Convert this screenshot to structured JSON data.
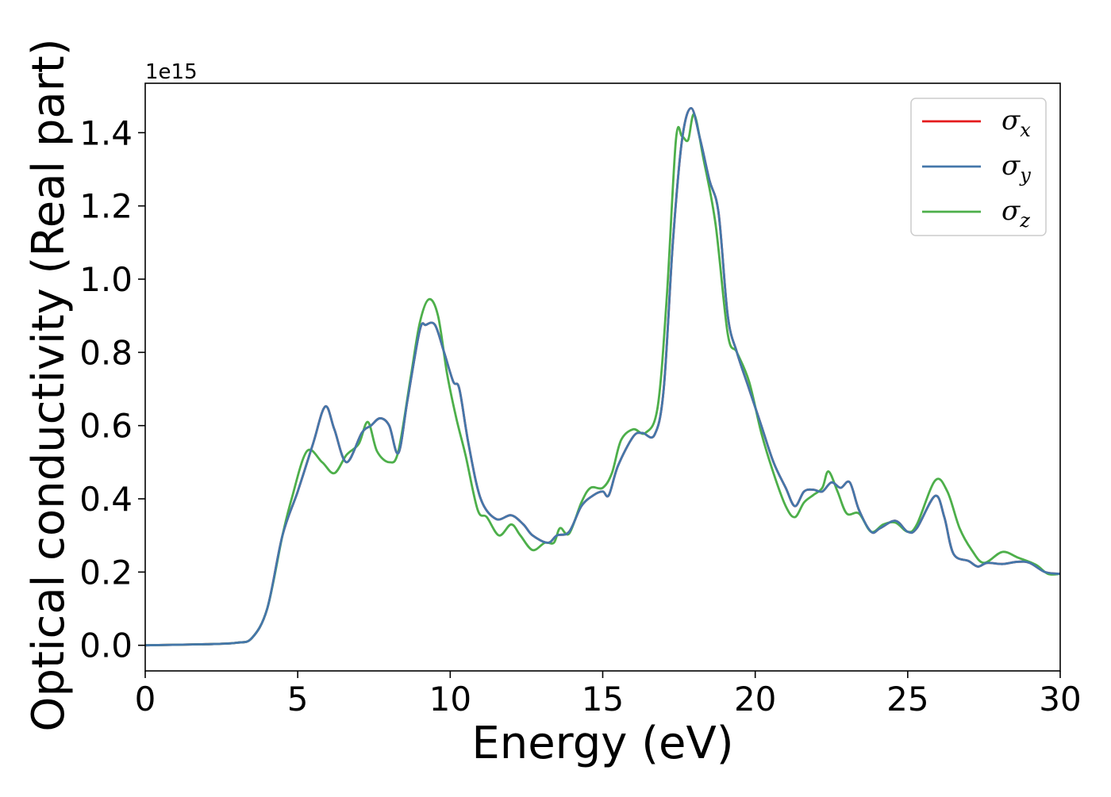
{
  "chart_data": {
    "type": "line",
    "xlabel": "Energy (eV)",
    "ylabel": "Optical conductivity (Real part)",
    "y_offset_text": "1e15",
    "xlim": [
      0,
      30
    ],
    "ylim": [
      -0.07,
      1.535
    ],
    "x_ticks": [
      0,
      5,
      10,
      15,
      20,
      25,
      30
    ],
    "x_tick_labels": [
      "0",
      "5",
      "10",
      "15",
      "20",
      "25",
      "30"
    ],
    "y_ticks": [
      0.0,
      0.2,
      0.4,
      0.6,
      0.8,
      1.0,
      1.2,
      1.4
    ],
    "y_tick_labels": [
      "0.0",
      "0.2",
      "0.4",
      "0.6",
      "0.8",
      "1.0",
      "1.2",
      "1.4"
    ],
    "grid": false,
    "legend_position": "top-right",
    "series": [
      {
        "name": "σ",
        "subscript": "x",
        "color": "#e41a1c",
        "points": [
          [
            0,
            0
          ],
          [
            2,
            0.003
          ],
          [
            3,
            0.007
          ],
          [
            3.5,
            0.02
          ],
          [
            4,
            0.1
          ],
          [
            4.5,
            0.3
          ],
          [
            5,
            0.42
          ],
          [
            5.5,
            0.55
          ],
          [
            5.9,
            0.652
          ],
          [
            6.2,
            0.59
          ],
          [
            6.6,
            0.5
          ],
          [
            7.1,
            0.58
          ],
          [
            7.4,
            0.6
          ],
          [
            7.7,
            0.62
          ],
          [
            8,
            0.6
          ],
          [
            8.3,
            0.525
          ],
          [
            8.6,
            0.67
          ],
          [
            9,
            0.86
          ],
          [
            9.2,
            0.875
          ],
          [
            9.5,
            0.875
          ],
          [
            9.8,
            0.8
          ],
          [
            10.1,
            0.72
          ],
          [
            10.3,
            0.7
          ],
          [
            10.6,
            0.55
          ],
          [
            11,
            0.4
          ],
          [
            11.5,
            0.345
          ],
          [
            12,
            0.355
          ],
          [
            12.4,
            0.33
          ],
          [
            12.7,
            0.3
          ],
          [
            13.2,
            0.28
          ],
          [
            13.5,
            0.3
          ],
          [
            13.9,
            0.31
          ],
          [
            14.3,
            0.38
          ],
          [
            14.7,
            0.41
          ],
          [
            15,
            0.42
          ],
          [
            15.2,
            0.41
          ],
          [
            15.5,
            0.49
          ],
          [
            16,
            0.57
          ],
          [
            16.3,
            0.58
          ],
          [
            16.7,
            0.575
          ],
          [
            17,
            0.7
          ],
          [
            17.3,
            1.1
          ],
          [
            17.6,
            1.38
          ],
          [
            17.9,
            1.467
          ],
          [
            18.2,
            1.38
          ],
          [
            18.5,
            1.27
          ],
          [
            18.8,
            1.18
          ],
          [
            19.1,
            0.9
          ],
          [
            19.4,
            0.8
          ],
          [
            19.8,
            0.7
          ],
          [
            20.2,
            0.6
          ],
          [
            20.6,
            0.5
          ],
          [
            21,
            0.43
          ],
          [
            21.3,
            0.38
          ],
          [
            21.6,
            0.42
          ],
          [
            21.9,
            0.425
          ],
          [
            22.2,
            0.42
          ],
          [
            22.5,
            0.445
          ],
          [
            22.8,
            0.43
          ],
          [
            23.1,
            0.445
          ],
          [
            23.4,
            0.37
          ],
          [
            23.8,
            0.31
          ],
          [
            24.1,
            0.32
          ],
          [
            24.6,
            0.34
          ],
          [
            25,
            0.31
          ],
          [
            25.3,
            0.32
          ],
          [
            25.9,
            0.408
          ],
          [
            26.2,
            0.35
          ],
          [
            26.5,
            0.25
          ],
          [
            27,
            0.23
          ],
          [
            27.3,
            0.215
          ],
          [
            27.6,
            0.225
          ],
          [
            28.1,
            0.222
          ],
          [
            28.6,
            0.228
          ],
          [
            29,
            0.225
          ],
          [
            29.5,
            0.2
          ],
          [
            30,
            0.195
          ]
        ]
      },
      {
        "name": "σ",
        "subscript": "y",
        "color": "#4477aa",
        "points": [
          [
            0,
            0
          ],
          [
            2,
            0.003
          ],
          [
            3,
            0.007
          ],
          [
            3.5,
            0.02
          ],
          [
            4,
            0.1
          ],
          [
            4.5,
            0.3
          ],
          [
            5,
            0.42
          ],
          [
            5.5,
            0.55
          ],
          [
            5.9,
            0.652
          ],
          [
            6.2,
            0.59
          ],
          [
            6.6,
            0.5
          ],
          [
            7.1,
            0.58
          ],
          [
            7.4,
            0.6
          ],
          [
            7.7,
            0.62
          ],
          [
            8,
            0.6
          ],
          [
            8.3,
            0.525
          ],
          [
            8.6,
            0.67
          ],
          [
            9,
            0.86
          ],
          [
            9.2,
            0.875
          ],
          [
            9.5,
            0.875
          ],
          [
            9.8,
            0.8
          ],
          [
            10.1,
            0.72
          ],
          [
            10.3,
            0.7
          ],
          [
            10.6,
            0.55
          ],
          [
            11,
            0.4
          ],
          [
            11.5,
            0.345
          ],
          [
            12,
            0.355
          ],
          [
            12.4,
            0.33
          ],
          [
            12.7,
            0.3
          ],
          [
            13.2,
            0.28
          ],
          [
            13.5,
            0.3
          ],
          [
            13.9,
            0.31
          ],
          [
            14.3,
            0.38
          ],
          [
            14.7,
            0.41
          ],
          [
            15,
            0.42
          ],
          [
            15.2,
            0.41
          ],
          [
            15.5,
            0.49
          ],
          [
            16,
            0.57
          ],
          [
            16.3,
            0.58
          ],
          [
            16.7,
            0.575
          ],
          [
            17,
            0.7
          ],
          [
            17.3,
            1.1
          ],
          [
            17.6,
            1.38
          ],
          [
            17.9,
            1.467
          ],
          [
            18.2,
            1.38
          ],
          [
            18.5,
            1.27
          ],
          [
            18.8,
            1.18
          ],
          [
            19.1,
            0.9
          ],
          [
            19.4,
            0.8
          ],
          [
            19.8,
            0.7
          ],
          [
            20.2,
            0.6
          ],
          [
            20.6,
            0.5
          ],
          [
            21,
            0.43
          ],
          [
            21.3,
            0.38
          ],
          [
            21.6,
            0.42
          ],
          [
            21.9,
            0.425
          ],
          [
            22.2,
            0.42
          ],
          [
            22.5,
            0.445
          ],
          [
            22.8,
            0.43
          ],
          [
            23.1,
            0.445
          ],
          [
            23.4,
            0.37
          ],
          [
            23.8,
            0.31
          ],
          [
            24.1,
            0.32
          ],
          [
            24.6,
            0.34
          ],
          [
            25,
            0.31
          ],
          [
            25.3,
            0.32
          ],
          [
            25.9,
            0.408
          ],
          [
            26.2,
            0.35
          ],
          [
            26.5,
            0.25
          ],
          [
            27,
            0.23
          ],
          [
            27.3,
            0.215
          ],
          [
            27.6,
            0.225
          ],
          [
            28.1,
            0.222
          ],
          [
            28.6,
            0.228
          ],
          [
            29,
            0.225
          ],
          [
            29.5,
            0.2
          ],
          [
            30,
            0.195
          ]
        ]
      },
      {
        "name": "σ",
        "subscript": "z",
        "color": "#4daf4a",
        "points": [
          [
            0,
            0
          ],
          [
            2,
            0.003
          ],
          [
            3,
            0.007
          ],
          [
            3.5,
            0.02
          ],
          [
            4,
            0.1
          ],
          [
            4.5,
            0.3
          ],
          [
            4.8,
            0.4
          ],
          [
            5.3,
            0.53
          ],
          [
            5.8,
            0.5
          ],
          [
            6.2,
            0.47
          ],
          [
            6.6,
            0.52
          ],
          [
            7,
            0.55
          ],
          [
            7.3,
            0.61
          ],
          [
            7.6,
            0.53
          ],
          [
            8,
            0.5
          ],
          [
            8.3,
            0.53
          ],
          [
            8.7,
            0.73
          ],
          [
            9,
            0.88
          ],
          [
            9.3,
            0.945
          ],
          [
            9.6,
            0.9
          ],
          [
            9.9,
            0.74
          ],
          [
            10.2,
            0.62
          ],
          [
            10.5,
            0.52
          ],
          [
            10.9,
            0.37
          ],
          [
            11.2,
            0.35
          ],
          [
            11.6,
            0.3
          ],
          [
            12,
            0.33
          ],
          [
            12.3,
            0.3
          ],
          [
            12.7,
            0.26
          ],
          [
            13.1,
            0.28
          ],
          [
            13.4,
            0.28
          ],
          [
            13.6,
            0.32
          ],
          [
            13.9,
            0.305
          ],
          [
            14.3,
            0.39
          ],
          [
            14.6,
            0.43
          ],
          [
            15,
            0.43
          ],
          [
            15.3,
            0.47
          ],
          [
            15.6,
            0.56
          ],
          [
            16,
            0.59
          ],
          [
            16.4,
            0.58
          ],
          [
            16.8,
            0.65
          ],
          [
            17.1,
            0.95
          ],
          [
            17.4,
            1.38
          ],
          [
            17.6,
            1.39
          ],
          [
            17.8,
            1.38
          ],
          [
            18,
            1.45
          ],
          [
            18.3,
            1.33
          ],
          [
            18.7,
            1.15
          ],
          [
            19.1,
            0.85
          ],
          [
            19.4,
            0.8
          ],
          [
            19.8,
            0.72
          ],
          [
            20.2,
            0.58
          ],
          [
            20.6,
            0.47
          ],
          [
            21,
            0.38
          ],
          [
            21.3,
            0.35
          ],
          [
            21.6,
            0.39
          ],
          [
            21.9,
            0.41
          ],
          [
            22.2,
            0.43
          ],
          [
            22.4,
            0.475
          ],
          [
            22.7,
            0.42
          ],
          [
            23,
            0.36
          ],
          [
            23.4,
            0.36
          ],
          [
            23.8,
            0.31
          ],
          [
            24.2,
            0.33
          ],
          [
            24.6,
            0.335
          ],
          [
            25,
            0.31
          ],
          [
            25.3,
            0.33
          ],
          [
            25.9,
            0.45
          ],
          [
            26.3,
            0.42
          ],
          [
            26.7,
            0.32
          ],
          [
            27.1,
            0.26
          ],
          [
            27.5,
            0.225
          ],
          [
            28.1,
            0.255
          ],
          [
            28.6,
            0.24
          ],
          [
            29.2,
            0.22
          ],
          [
            29.6,
            0.195
          ],
          [
            30,
            0.195
          ]
        ]
      }
    ]
  }
}
